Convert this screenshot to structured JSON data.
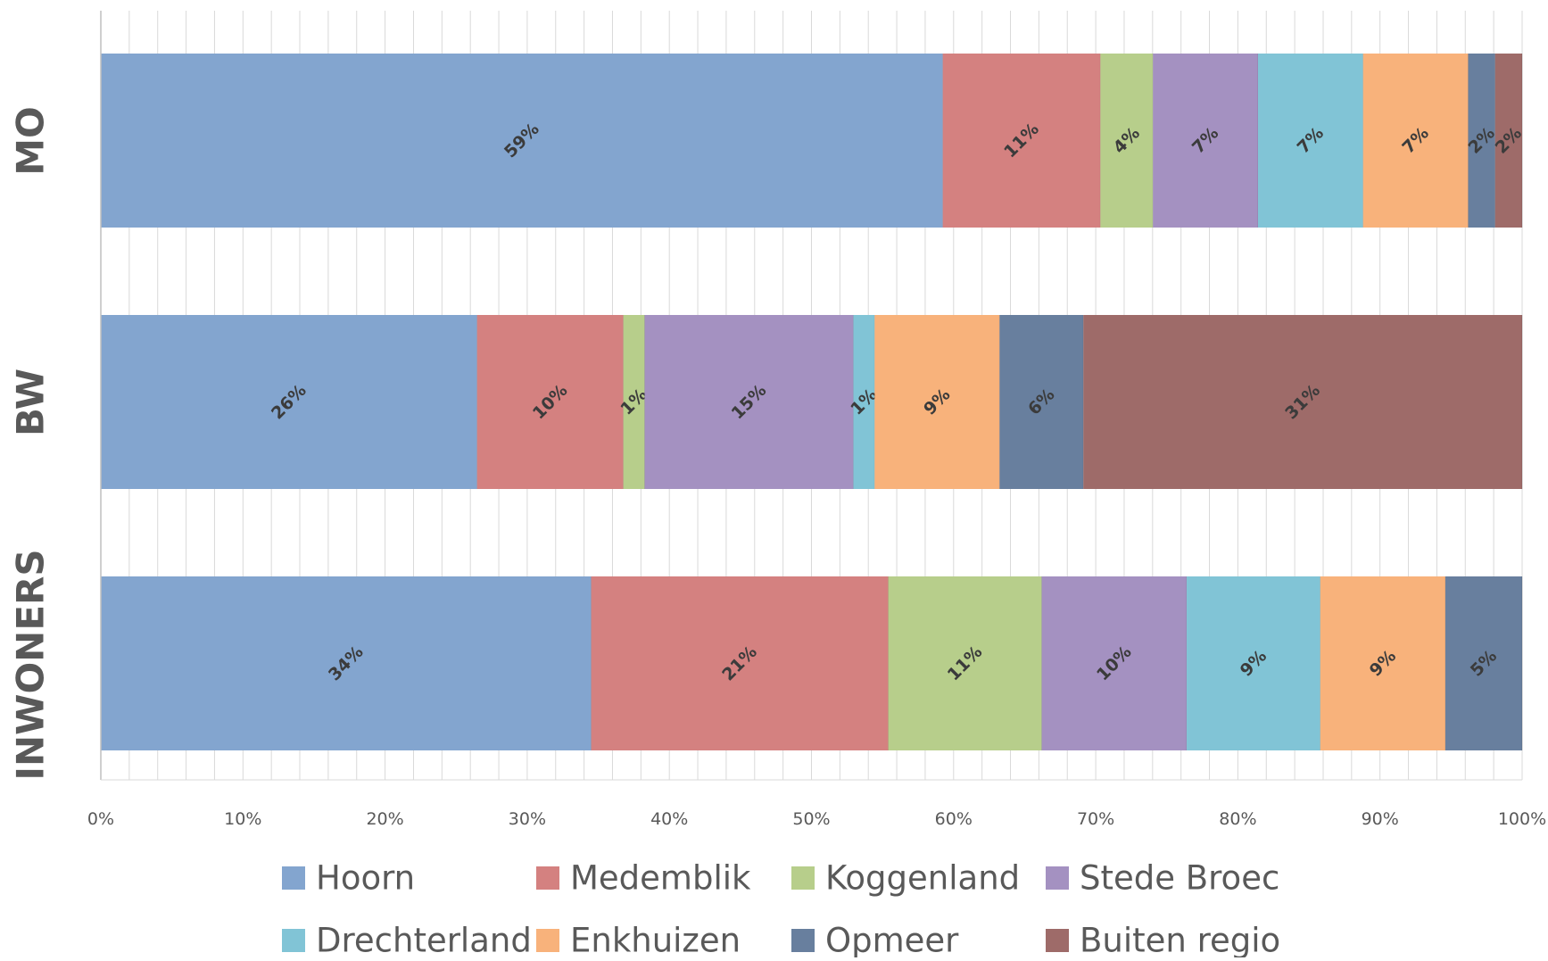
{
  "chart_data": {
    "type": "bar",
    "orientation": "horizontal",
    "stacking": "percent",
    "categories": [
      "MO",
      "BW",
      "INWONERS"
    ],
    "series": [
      {
        "name": "Hoorn",
        "color": "#83a5cf",
        "values": [
          59.3,
          26.5,
          34.5
        ],
        "labels": [
          "59%",
          "26%",
          "34%"
        ]
      },
      {
        "name": "Medemblik",
        "color": "#d48180",
        "values": [
          11.1,
          10.3,
          20.9
        ],
        "labels": [
          "11%",
          "10%",
          "21%"
        ]
      },
      {
        "name": "Koggenland",
        "color": "#b7ce8b",
        "values": [
          3.7,
          1.5,
          10.8
        ],
        "labels": [
          "4%",
          "1%",
          "11%"
        ]
      },
      {
        "name": "Stede Broec",
        "color": "#a491c1",
        "values": [
          7.4,
          14.7,
          10.2
        ],
        "labels": [
          "7%",
          "15%",
          "10%"
        ]
      },
      {
        "name": "Drechterland",
        "color": "#81c4d6",
        "values": [
          7.4,
          1.5,
          9.4
        ],
        "labels": [
          "7%",
          "1%",
          "9%"
        ]
      },
      {
        "name": "Enkhuizen",
        "color": "#f8b27b",
        "values": [
          7.4,
          8.8,
          8.8
        ],
        "labels": [
          "7%",
          "9%",
          "9%"
        ]
      },
      {
        "name": "Opmeer",
        "color": "#687f9e",
        "values": [
          1.9,
          5.9,
          5.4
        ],
        "labels": [
          "2%",
          "6%",
          "5%"
        ]
      },
      {
        "name": "Buiten regio",
        "color": "#9e6b69",
        "values": [
          1.9,
          30.9,
          0
        ],
        "labels": [
          "2%",
          "31%",
          ""
        ]
      }
    ],
    "xlim": [
      0,
      100
    ],
    "x_ticks": [
      "0%",
      "10%",
      "20%",
      "30%",
      "40%",
      "50%",
      "60%",
      "70%",
      "80%",
      "90%",
      "100%"
    ],
    "grid": "vertical",
    "legend": "bottom",
    "title": "",
    "xlabel": "",
    "ylabel": ""
  }
}
